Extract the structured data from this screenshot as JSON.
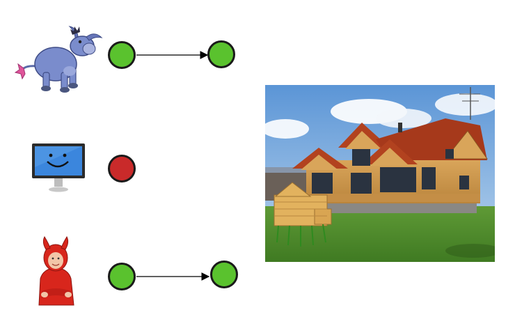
{
  "diagram": {
    "rows": [
      {
        "id": "donkey",
        "icon": "donkey-character-icon",
        "source_status": "ok",
        "target_status": "ok",
        "has_arrow": true
      },
      {
        "id": "monitor",
        "icon": "smiling-monitor-icon",
        "source_status": "error",
        "target_status": null,
        "has_arrow": false
      },
      {
        "id": "devil",
        "icon": "devil-child-icon",
        "source_status": "ok",
        "target_status": "ok",
        "has_arrow": true
      }
    ],
    "status_colors": {
      "ok": "#5ac22e",
      "error": "#c92a2a",
      "outline": "#1a1a1a"
    },
    "image": {
      "subject": "wooden-log-house-photo"
    }
  }
}
